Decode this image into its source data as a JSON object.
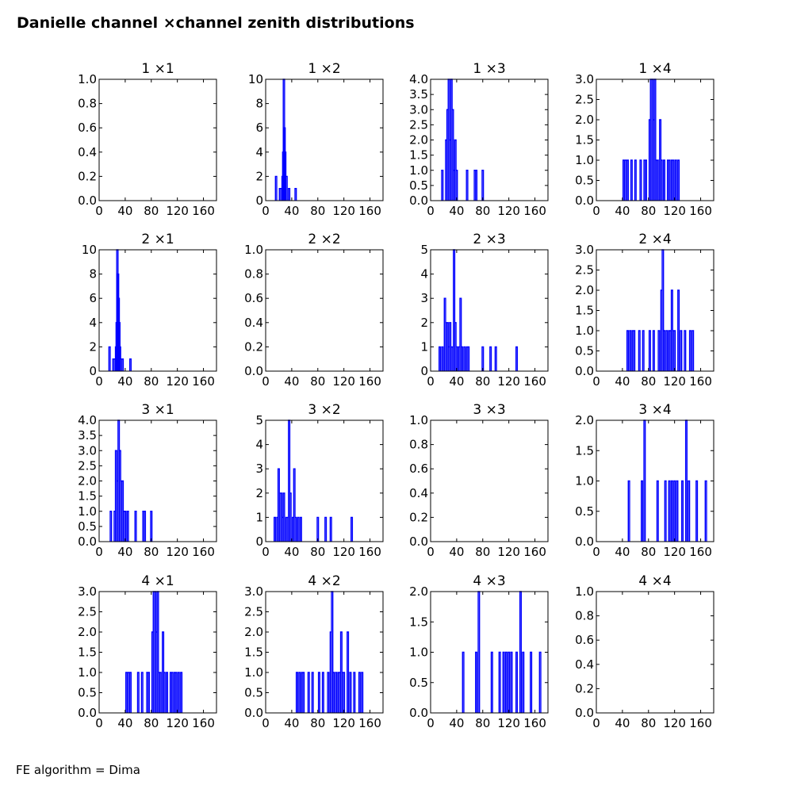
{
  "page": {
    "title": "Danielle channel ×channel zenith distributions",
    "footer": "FE algorithm = Dima"
  },
  "chart_data": [
    {
      "type": "histogram",
      "title": "1 ×1",
      "xlim": [
        0,
        180
      ],
      "ylim": [
        0,
        1
      ],
      "yticks": [
        "0.0",
        "0.2",
        "0.4",
        "0.6",
        "0.8",
        "1.0"
      ],
      "xticks": [
        "0",
        "40",
        "80",
        "120",
        "160"
      ],
      "bins": []
    },
    {
      "type": "histogram",
      "title": "1 ×2",
      "xlim": [
        0,
        180
      ],
      "ylim": [
        0,
        10
      ],
      "yticks": [
        "0",
        "2",
        "4",
        "6",
        "8",
        "10"
      ],
      "xticks": [
        "0",
        "40",
        "80",
        "120",
        "160"
      ],
      "bins": [
        [
          16,
          2
        ],
        [
          22,
          1
        ],
        [
          24,
          1
        ],
        [
          26,
          2
        ],
        [
          27,
          4
        ],
        [
          28,
          10
        ],
        [
          29,
          6
        ],
        [
          30,
          4
        ],
        [
          32,
          2
        ],
        [
          36,
          1
        ],
        [
          46,
          1
        ]
      ]
    },
    {
      "type": "histogram",
      "title": "1 ×3",
      "xlim": [
        0,
        180
      ],
      "ylim": [
        0,
        4
      ],
      "yticks": [
        "0.0",
        "0.5",
        "1.0",
        "1.5",
        "2.0",
        "2.5",
        "3.0",
        "3.5",
        "4.0"
      ],
      "xticks": [
        "0",
        "40",
        "80",
        "120",
        "160"
      ],
      "bins": [
        [
          18,
          1
        ],
        [
          24,
          2
        ],
        [
          26,
          3
        ],
        [
          28,
          4
        ],
        [
          30,
          2
        ],
        [
          32,
          4
        ],
        [
          34,
          3
        ],
        [
          36,
          1
        ],
        [
          38,
          2
        ],
        [
          40,
          1
        ],
        [
          56,
          1
        ],
        [
          68,
          1
        ],
        [
          70,
          1
        ],
        [
          80,
          1
        ]
      ]
    },
    {
      "type": "histogram",
      "title": "1 ×4",
      "xlim": [
        0,
        180
      ],
      "ylim": [
        0,
        3
      ],
      "yticks": [
        "0.0",
        "0.5",
        "1.0",
        "1.5",
        "2.0",
        "2.5",
        "3.0"
      ],
      "xticks": [
        "0",
        "40",
        "80",
        "120",
        "160"
      ],
      "bins": [
        [
          42,
          1
        ],
        [
          44,
          1
        ],
        [
          46,
          1
        ],
        [
          48,
          1
        ],
        [
          54,
          1
        ],
        [
          60,
          1
        ],
        [
          68,
          1
        ],
        [
          74,
          1
        ],
        [
          76,
          1
        ],
        [
          82,
          2
        ],
        [
          84,
          3
        ],
        [
          86,
          3
        ],
        [
          88,
          2
        ],
        [
          90,
          3
        ],
        [
          92,
          1
        ],
        [
          94,
          1
        ],
        [
          98,
          2
        ],
        [
          100,
          1
        ],
        [
          104,
          1
        ],
        [
          110,
          1
        ],
        [
          112,
          1
        ],
        [
          116,
          1
        ],
        [
          118,
          1
        ],
        [
          122,
          1
        ],
        [
          126,
          1
        ]
      ]
    },
    {
      "type": "histogram",
      "title": "2 ×1",
      "xlim": [
        0,
        180
      ],
      "ylim": [
        0,
        10
      ],
      "yticks": [
        "0",
        "2",
        "4",
        "6",
        "8",
        "10"
      ],
      "xticks": [
        "0",
        "40",
        "80",
        "120",
        "160"
      ],
      "bins": [
        [
          16,
          2
        ],
        [
          22,
          1
        ],
        [
          24,
          1
        ],
        [
          26,
          2
        ],
        [
          27,
          4
        ],
        [
          28,
          10
        ],
        [
          29,
          8
        ],
        [
          30,
          6
        ],
        [
          31,
          4
        ],
        [
          32,
          2
        ],
        [
          34,
          1
        ],
        [
          36,
          1
        ],
        [
          48,
          1
        ]
      ]
    },
    {
      "type": "histogram",
      "title": "2 ×2",
      "xlim": [
        0,
        180
      ],
      "ylim": [
        0,
        1
      ],
      "yticks": [
        "0.0",
        "0.2",
        "0.4",
        "0.6",
        "0.8",
        "1.0"
      ],
      "xticks": [
        "0",
        "40",
        "80",
        "120",
        "160"
      ],
      "bins": []
    },
    {
      "type": "histogram",
      "title": "2 ×3",
      "xlim": [
        0,
        180
      ],
      "ylim": [
        0,
        5
      ],
      "yticks": [
        "0",
        "1",
        "2",
        "3",
        "4",
        "5"
      ],
      "xticks": [
        "0",
        "40",
        "80",
        "120",
        "160"
      ],
      "bins": [
        [
          14,
          1
        ],
        [
          18,
          1
        ],
        [
          22,
          3
        ],
        [
          24,
          2
        ],
        [
          26,
          2
        ],
        [
          28,
          1
        ],
        [
          30,
          2
        ],
        [
          32,
          1
        ],
        [
          34,
          1
        ],
        [
          36,
          5
        ],
        [
          38,
          2
        ],
        [
          40,
          1
        ],
        [
          42,
          1
        ],
        [
          44,
          1
        ],
        [
          46,
          3
        ],
        [
          48,
          1
        ],
        [
          52,
          1
        ],
        [
          56,
          1
        ],
        [
          58,
          1
        ],
        [
          80,
          1
        ],
        [
          92,
          1
        ],
        [
          100,
          1
        ],
        [
          132,
          1
        ]
      ]
    },
    {
      "type": "histogram",
      "title": "2 ×4",
      "xlim": [
        0,
        180
      ],
      "ylim": [
        0,
        3
      ],
      "yticks": [
        "0.0",
        "0.5",
        "1.0",
        "1.5",
        "2.0",
        "2.5",
        "3.0"
      ],
      "xticks": [
        "0",
        "40",
        "80",
        "120",
        "160"
      ],
      "bins": [
        [
          48,
          1
        ],
        [
          52,
          1
        ],
        [
          56,
          1
        ],
        [
          58,
          1
        ],
        [
          66,
          1
        ],
        [
          72,
          1
        ],
        [
          82,
          1
        ],
        [
          88,
          1
        ],
        [
          96,
          1
        ],
        [
          100,
          2
        ],
        [
          102,
          3
        ],
        [
          104,
          1
        ],
        [
          108,
          1
        ],
        [
          112,
          1
        ],
        [
          114,
          1
        ],
        [
          116,
          2
        ],
        [
          118,
          1
        ],
        [
          120,
          1
        ],
        [
          126,
          2
        ],
        [
          130,
          1
        ],
        [
          136,
          1
        ],
        [
          144,
          1
        ],
        [
          148,
          1
        ]
      ]
    },
    {
      "type": "histogram",
      "title": "3 ×1",
      "xlim": [
        0,
        180
      ],
      "ylim": [
        0,
        4
      ],
      "yticks": [
        "0.0",
        "0.5",
        "1.0",
        "1.5",
        "2.0",
        "2.5",
        "3.0",
        "3.5",
        "4.0"
      ],
      "xticks": [
        "0",
        "40",
        "80",
        "120",
        "160"
      ],
      "bins": [
        [
          18,
          1
        ],
        [
          24,
          1
        ],
        [
          26,
          3
        ],
        [
          28,
          2
        ],
        [
          30,
          4
        ],
        [
          32,
          3
        ],
        [
          34,
          2
        ],
        [
          36,
          2
        ],
        [
          38,
          1
        ],
        [
          40,
          1
        ],
        [
          44,
          1
        ],
        [
          56,
          1
        ],
        [
          68,
          1
        ],
        [
          70,
          1
        ],
        [
          80,
          1
        ]
      ]
    },
    {
      "type": "histogram",
      "title": "3 ×2",
      "xlim": [
        0,
        180
      ],
      "ylim": [
        0,
        5
      ],
      "yticks": [
        "0",
        "1",
        "2",
        "3",
        "4",
        "5"
      ],
      "xticks": [
        "0",
        "40",
        "80",
        "120",
        "160"
      ],
      "bins": [
        [
          14,
          1
        ],
        [
          18,
          1
        ],
        [
          20,
          3
        ],
        [
          22,
          2
        ],
        [
          24,
          2
        ],
        [
          26,
          1
        ],
        [
          28,
          2
        ],
        [
          32,
          1
        ],
        [
          34,
          1
        ],
        [
          36,
          5
        ],
        [
          38,
          2
        ],
        [
          42,
          1
        ],
        [
          44,
          3
        ],
        [
          46,
          1
        ],
        [
          50,
          1
        ],
        [
          54,
          1
        ],
        [
          80,
          1
        ],
        [
          92,
          1
        ],
        [
          100,
          1
        ],
        [
          132,
          1
        ]
      ]
    },
    {
      "type": "histogram",
      "title": "3 ×3",
      "xlim": [
        0,
        180
      ],
      "ylim": [
        0,
        1
      ],
      "yticks": [
        "0.0",
        "0.2",
        "0.4",
        "0.6",
        "0.8",
        "1.0"
      ],
      "xticks": [
        "0",
        "40",
        "80",
        "120",
        "160"
      ],
      "bins": []
    },
    {
      "type": "histogram",
      "title": "3 ×4",
      "xlim": [
        0,
        180
      ],
      "ylim": [
        0,
        2
      ],
      "yticks": [
        "0.0",
        "0.5",
        "1.0",
        "1.5",
        "2.0"
      ],
      "xticks": [
        "0",
        "40",
        "80",
        "120",
        "160"
      ],
      "bins": [
        [
          50,
          1
        ],
        [
          70,
          1
        ],
        [
          74,
          2
        ],
        [
          94,
          1
        ],
        [
          106,
          1
        ],
        [
          112,
          1
        ],
        [
          116,
          1
        ],
        [
          120,
          1
        ],
        [
          124,
          1
        ],
        [
          132,
          1
        ],
        [
          138,
          2
        ],
        [
          142,
          1
        ],
        [
          154,
          1
        ],
        [
          168,
          1
        ]
      ]
    },
    {
      "type": "histogram",
      "title": "4 ×1",
      "xlim": [
        0,
        180
      ],
      "ylim": [
        0,
        3
      ],
      "yticks": [
        "0.0",
        "0.5",
        "1.0",
        "1.5",
        "2.0",
        "2.5",
        "3.0"
      ],
      "xticks": [
        "0",
        "40",
        "80",
        "120",
        "160"
      ],
      "bins": [
        [
          42,
          1
        ],
        [
          44,
          1
        ],
        [
          46,
          1
        ],
        [
          48,
          1
        ],
        [
          60,
          1
        ],
        [
          66,
          1
        ],
        [
          74,
          1
        ],
        [
          76,
          1
        ],
        [
          82,
          2
        ],
        [
          84,
          3
        ],
        [
          86,
          3
        ],
        [
          88,
          2
        ],
        [
          90,
          3
        ],
        [
          92,
          1
        ],
        [
          94,
          1
        ],
        [
          98,
          2
        ],
        [
          100,
          1
        ],
        [
          104,
          1
        ],
        [
          110,
          1
        ],
        [
          112,
          1
        ],
        [
          116,
          1
        ],
        [
          118,
          1
        ],
        [
          122,
          1
        ],
        [
          126,
          1
        ]
      ]
    },
    {
      "type": "histogram",
      "title": "4 ×2",
      "xlim": [
        0,
        180
      ],
      "ylim": [
        0,
        3
      ],
      "yticks": [
        "0.0",
        "0.5",
        "1.0",
        "1.5",
        "2.0",
        "2.5",
        "3.0"
      ],
      "xticks": [
        "0",
        "40",
        "80",
        "120",
        "160"
      ],
      "bins": [
        [
          48,
          1
        ],
        [
          52,
          1
        ],
        [
          56,
          1
        ],
        [
          58,
          1
        ],
        [
          66,
          1
        ],
        [
          72,
          1
        ],
        [
          82,
          1
        ],
        [
          88,
          1
        ],
        [
          96,
          1
        ],
        [
          100,
          2
        ],
        [
          102,
          3
        ],
        [
          104,
          1
        ],
        [
          108,
          1
        ],
        [
          112,
          1
        ],
        [
          114,
          1
        ],
        [
          116,
          2
        ],
        [
          118,
          1
        ],
        [
          120,
          1
        ],
        [
          126,
          2
        ],
        [
          130,
          1
        ],
        [
          136,
          1
        ],
        [
          144,
          1
        ],
        [
          148,
          1
        ]
      ]
    },
    {
      "type": "histogram",
      "title": "4 ×3",
      "xlim": [
        0,
        180
      ],
      "ylim": [
        0,
        2
      ],
      "yticks": [
        "0.0",
        "0.5",
        "1.0",
        "1.5",
        "2.0"
      ],
      "xticks": [
        "0",
        "40",
        "80",
        "120",
        "160"
      ],
      "bins": [
        [
          50,
          1
        ],
        [
          70,
          1
        ],
        [
          74,
          2
        ],
        [
          94,
          1
        ],
        [
          106,
          1
        ],
        [
          112,
          1
        ],
        [
          116,
          1
        ],
        [
          120,
          1
        ],
        [
          124,
          1
        ],
        [
          132,
          1
        ],
        [
          138,
          2
        ],
        [
          142,
          1
        ],
        [
          154,
          1
        ],
        [
          168,
          1
        ]
      ]
    },
    {
      "type": "histogram",
      "title": "4 ×4",
      "xlim": [
        0,
        180
      ],
      "ylim": [
        0,
        1
      ],
      "yticks": [
        "0.0",
        "0.2",
        "0.4",
        "0.6",
        "0.8",
        "1.0"
      ],
      "xticks": [
        "0",
        "40",
        "80",
        "120",
        "160"
      ],
      "bins": []
    }
  ],
  "style": {
    "line_color": "#0000ff",
    "axis_color": "#000000"
  }
}
